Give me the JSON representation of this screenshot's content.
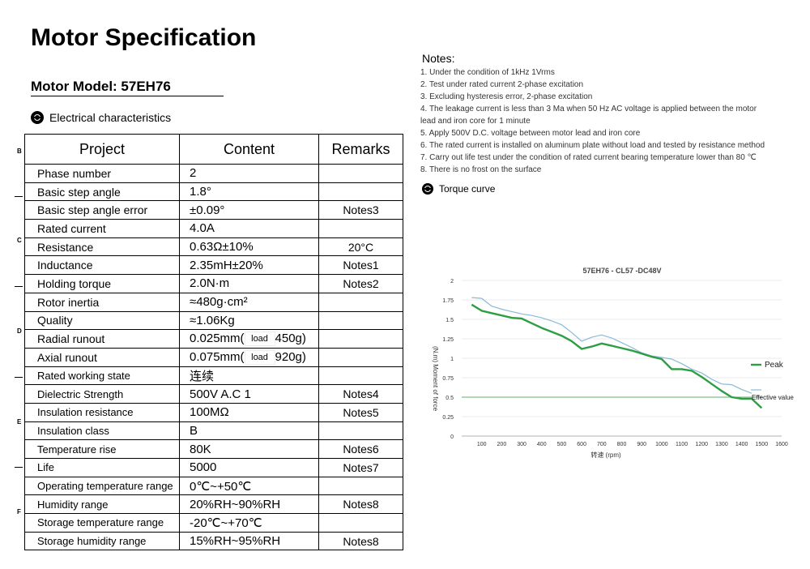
{
  "page": {
    "title": "Motor Specification",
    "model": "Motor Model: 57EH76",
    "electrical_heading": "Electrical characteristics",
    "torque_heading": "Torque curve",
    "margin_letters": [
      "B",
      "C",
      "D",
      "E",
      "F"
    ]
  },
  "table": {
    "headers": [
      "Project",
      "Content",
      "Remarks"
    ],
    "rows": [
      {
        "project": "Phase number",
        "content": "2",
        "remarks": ""
      },
      {
        "project": "Basic step angle",
        "content": "1.8°",
        "remarks": ""
      },
      {
        "project": "Basic step angle error",
        "content": "±0.09°",
        "remarks": "Notes3"
      },
      {
        "project": "Rated current",
        "content": "4.0A",
        "remarks": ""
      },
      {
        "project": "Resistance",
        "content": "0.63Ω±10%",
        "remarks": "20°C"
      },
      {
        "project": "Inductance",
        "content": "2.35mH±20%",
        "remarks": "Notes1"
      },
      {
        "project": "Holding torque",
        "content": "2.0N·m",
        "remarks": "Notes2"
      },
      {
        "project": "Rotor inertia",
        "content": "≈480g·cm²",
        "remarks": ""
      },
      {
        "project": "Quality",
        "content": "≈1.06Kg",
        "remarks": ""
      },
      {
        "project": "Radial runout",
        "content_pre": "0.025mm(",
        "content_box": "load",
        "content_post": "450g)",
        "remarks": ""
      },
      {
        "project": "Axial runout",
        "content_pre": "0.075mm(",
        "content_box": "load",
        "content_post": "920g)",
        "remarks": ""
      },
      {
        "project": "Rated working state",
        "content": "连续",
        "remarks": ""
      },
      {
        "project": "Dielectric Strength",
        "content": "500V A.C 1",
        "remarks": "Notes4"
      },
      {
        "project": "Insulation resistance",
        "content": "100MΩ",
        "remarks": "Notes5"
      },
      {
        "project": "Insulation class",
        "content": "B",
        "remarks": ""
      },
      {
        "project": "Temperature rise",
        "content": "80K",
        "remarks": "Notes6"
      },
      {
        "project": "Life",
        "content": "5000",
        "remarks": "Notes7"
      },
      {
        "project": "Operating temperature range",
        "content": "0℃~+50℃",
        "remarks": ""
      },
      {
        "project": "Humidity range",
        "content": "20%RH~90%RH",
        "remarks": "Notes8"
      },
      {
        "project": "Storage temperature range",
        "content": "-20℃~+70℃",
        "remarks": ""
      },
      {
        "project": "Storage humidity range",
        "content": "15%RH~95%RH",
        "remarks": "Notes8"
      }
    ]
  },
  "notes": {
    "title": "Notes:",
    "items": [
      "1. Under the condition of 1kHz 1Vrms",
      "2. Test under rated current 2-phase excitation",
      "3. Excluding hysteresis error, 2-phase excitation",
      "4. The leakage current is less than 3 Ma when 50 Hz AC voltage is applied between the motor",
      " lead and iron core for 1 minute",
      "5. Apply 500V D.C. voltage between motor lead and iron core",
      "6. The rated current is installed on aluminum plate without load and tested by resistance method",
      "7. Carry out life test under the condition of rated current bearing temperature lower than 80 ℃",
      "8. There is no frost on the surface"
    ]
  },
  "chart_data": {
    "type": "line",
    "title": "57EH76 - CL57 -DC48V",
    "xlabel": "转速 (rpm)",
    "ylabel": "(N.m) Moment of force",
    "xlim": [
      0,
      1600
    ],
    "ylim": [
      0,
      2
    ],
    "x_ticks": [
      100,
      200,
      300,
      400,
      500,
      600,
      700,
      800,
      900,
      1000,
      1100,
      1200,
      1300,
      1400,
      1500,
      1600
    ],
    "y_ticks": [
      0,
      0.25,
      0.5,
      0.75,
      1,
      1.25,
      1.5,
      1.75,
      2
    ],
    "grid": "horizontal",
    "series": [
      {
        "name": "Peak",
        "color": "#2e9e44",
        "x": [
          50,
          100,
          150,
          200,
          250,
          300,
          350,
          400,
          450,
          500,
          550,
          600,
          650,
          700,
          750,
          800,
          850,
          900,
          950,
          1000,
          1050,
          1100,
          1150,
          1200,
          1250,
          1300,
          1350,
          1400,
          1450,
          1500
        ],
        "y": [
          1.69,
          1.61,
          1.58,
          1.55,
          1.52,
          1.51,
          1.45,
          1.39,
          1.34,
          1.29,
          1.22,
          1.12,
          1.15,
          1.19,
          1.16,
          1.13,
          1.1,
          1.06,
          1.02,
          0.99,
          0.86,
          0.86,
          0.84,
          0.76,
          0.67,
          0.58,
          0.5,
          0.48,
          0.48,
          0.36
        ]
      },
      {
        "name": "",
        "color": "#8bb8d8",
        "x": [
          50,
          100,
          150,
          200,
          250,
          300,
          350,
          400,
          450,
          500,
          550,
          600,
          650,
          700,
          750,
          800,
          850,
          900,
          950,
          1000,
          1050,
          1100,
          1150,
          1200,
          1250,
          1300,
          1350,
          1400,
          1450
        ],
        "y": [
          1.78,
          1.77,
          1.67,
          1.63,
          1.6,
          1.57,
          1.55,
          1.52,
          1.48,
          1.43,
          1.33,
          1.22,
          1.27,
          1.3,
          1.26,
          1.2,
          1.14,
          1.07,
          1.03,
          1.01,
          0.99,
          0.93,
          0.86,
          0.81,
          0.73,
          0.67,
          0.66,
          0.6,
          0.55
        ]
      },
      {
        "name": "Effective value",
        "color": "#2e9e44",
        "x": [
          0,
          1500
        ],
        "y": [
          0.5,
          0.5
        ],
        "style": "reference"
      }
    ],
    "legend": [
      {
        "label": "Peak",
        "color": "#2e9e44"
      },
      {
        "label": "Effective value",
        "color": "#8bb8d8"
      }
    ],
    "legend_position": "right"
  }
}
